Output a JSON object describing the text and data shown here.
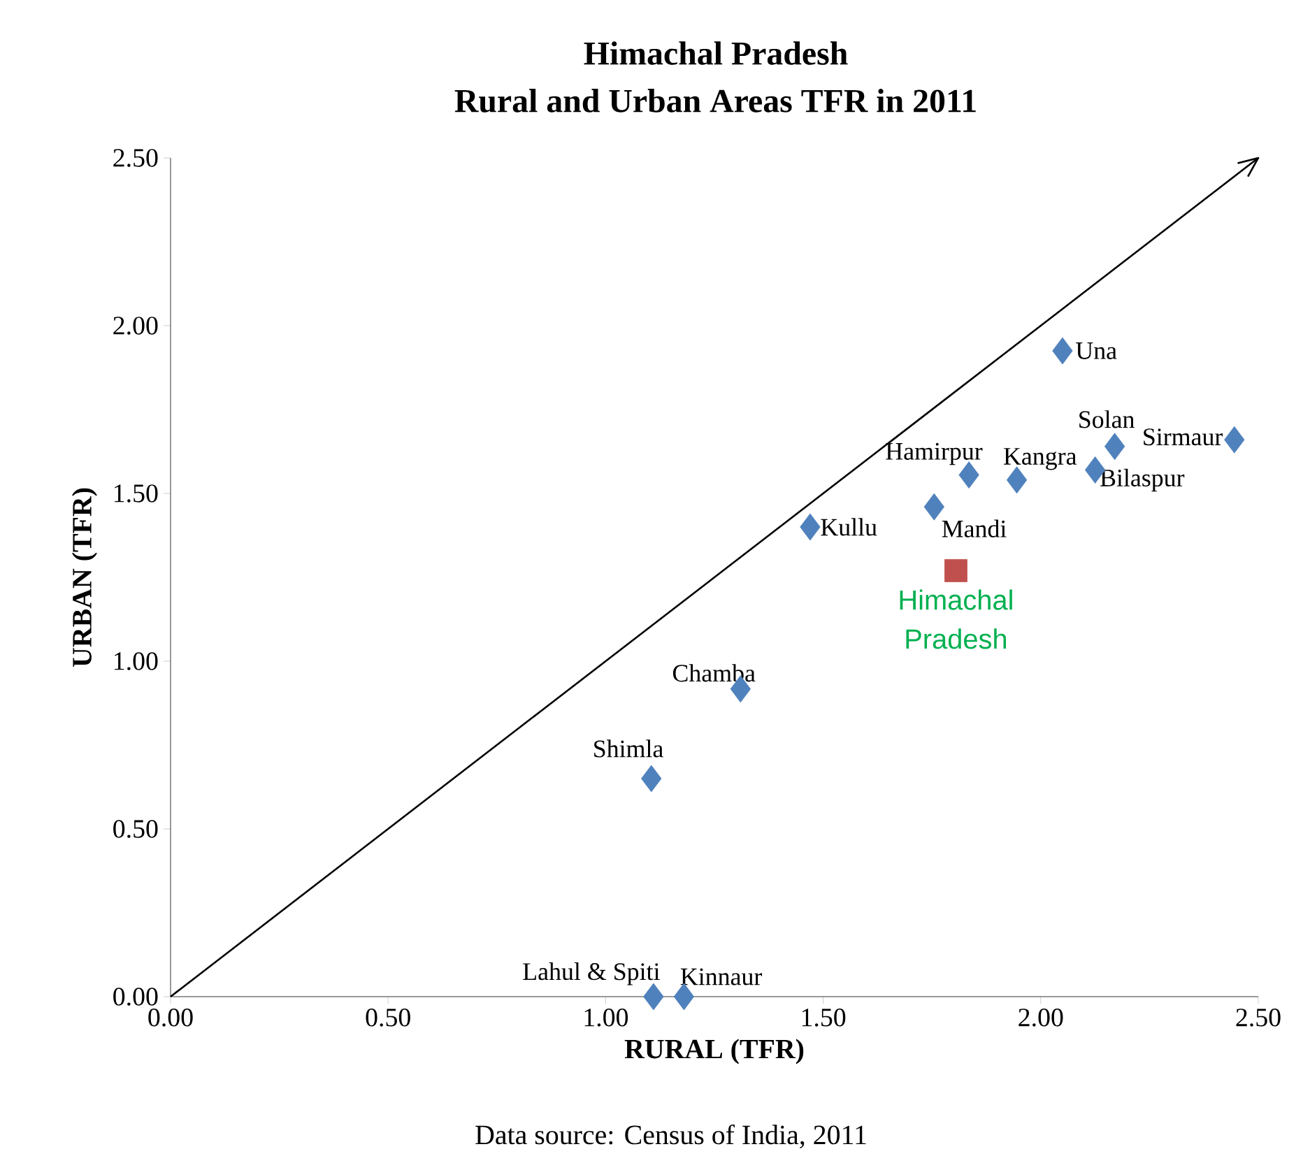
{
  "chart_data": {
    "type": "scatter",
    "title": "Himachal Pradesh",
    "subtitle": "Rural and Urban Areas TFR in 2011",
    "xlabel": "RURAL (TFR)",
    "ylabel": "URBAN (TFR)",
    "xlim": [
      0,
      2.5
    ],
    "ylim": [
      0,
      2.5
    ],
    "xticks": [
      {
        "value": 0,
        "label": "0.00"
      },
      {
        "value": 0.5,
        "label": "0.50"
      },
      {
        "value": 1,
        "label": "1.00"
      },
      {
        "value": 1.5,
        "label": "1.50"
      },
      {
        "value": 2,
        "label": "2.00"
      },
      {
        "value": 2.5,
        "label": "2.50"
      }
    ],
    "yticks": [
      {
        "value": 0,
        "label": "0.00"
      },
      {
        "value": 0.5,
        "label": "0.50"
      },
      {
        "value": 1,
        "label": "1.00"
      },
      {
        "value": 1.5,
        "label": "1.50"
      },
      {
        "value": 2,
        "label": "2.00"
      },
      {
        "value": 2.5,
        "label": "2.50"
      }
    ],
    "grid": false,
    "legend": false,
    "marker": "diamond",
    "series": [
      {
        "color": "#4f81bd",
        "x": [
          2.05,
          2.17,
          2.445,
          1.835,
          1.945,
          2.125,
          1.755,
          1.47,
          1.31,
          1.105,
          1.11,
          1.18
        ],
        "values": [
          1.925,
          1.64,
          1.66,
          1.555,
          1.54,
          1.57,
          1.46,
          1.4,
          0.917,
          0.65,
          0,
          0
        ]
      },
      {
        "name": "Himachal Pradesh",
        "color": "#c0504d",
        "marker": "square",
        "x": [
          1.805
        ],
        "values": [
          1.27
        ]
      },
      {
        "type": "line",
        "color": "#000000",
        "marker": "none",
        "x": [
          0,
          2.5
        ],
        "values": [
          0,
          2.5
        ]
      }
    ],
    "annotations": [
      {
        "text": "Una",
        "x": 2.05,
        "y": 1.925
      },
      {
        "text": "Solan",
        "x": 2.17,
        "y": 1.64
      },
      {
        "text": "Sirmaur",
        "x": 2.445,
        "y": 1.66
      },
      {
        "text": "Hamirpur",
        "x": 1.835,
        "y": 1.555
      },
      {
        "text": "Kangra",
        "x": 1.945,
        "y": 1.54
      },
      {
        "text": "Bilaspur",
        "x": 2.125,
        "y": 1.57
      },
      {
        "text": "Mandi",
        "x": 1.755,
        "y": 1.46
      },
      {
        "text": "Kullu",
        "x": 1.47,
        "y": 1.4
      },
      {
        "text": "Chamba",
        "x": 1.31,
        "y": 0.917
      },
      {
        "text": "Shimla",
        "x": 1.105,
        "y": 0.65
      },
      {
        "text": "Lahul & Spiti",
        "x": 1.11,
        "y": 0
      },
      {
        "text": "Kinnaur",
        "x": 1.18,
        "y": 0
      },
      "Data source: Census of India, 2011"
    ]
  }
}
